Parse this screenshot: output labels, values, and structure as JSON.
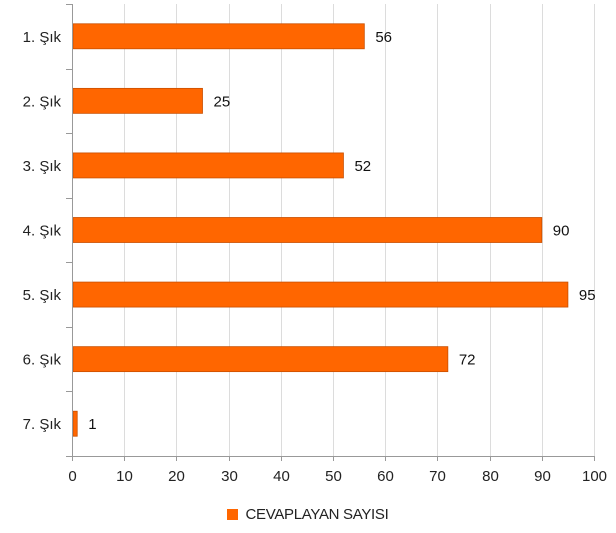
{
  "chart_data": {
    "type": "bar",
    "orientation": "horizontal",
    "categories": [
      "1. Şık",
      "2. Şık",
      "3. Şık",
      "4. Şık",
      "5. Şık",
      "6. Şık",
      "7. Şık"
    ],
    "series": [
      {
        "name": "CEVAPLAYAN SAYISI",
        "values": [
          56,
          25,
          52,
          90,
          95,
          72,
          1
        ],
        "color": "#ff6600"
      }
    ],
    "xlim": [
      0,
      100
    ],
    "xticks": [
      0,
      10,
      20,
      30,
      40,
      50,
      60,
      70,
      80,
      90,
      100
    ],
    "grid": true,
    "legend_position": "bottom",
    "data_labels": true
  }
}
